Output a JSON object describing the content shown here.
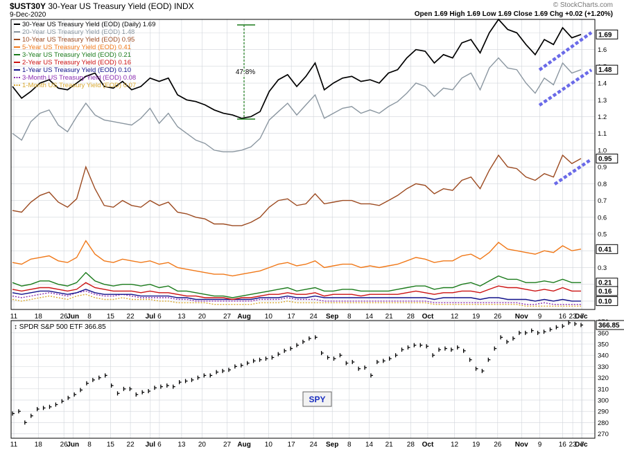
{
  "header": {
    "symbol": "$UST30Y",
    "name": "30-Year US Treasury Yield (EOD)",
    "exchange": "INDX",
    "date": "9-Dec-2020",
    "quote": "Open 1.69  High 1.69  Low 1.69  Close 1.69  Chg +0.02 (+1.20%)",
    "watermark": "© StockCharts.com",
    "annotation": "47.8%",
    "spy_box": "SPY"
  },
  "colors": {
    "bg": "#ffffff",
    "grid": "#d0d4da",
    "y30": "#000000",
    "y20": "#8a96a0",
    "y10": "#9c4a20",
    "y5": "#f07818",
    "y3": "#1a7a1a",
    "y2": "#cc1111",
    "y1": "#10108a",
    "m3": "#8a2ab0",
    "m1": "#d8a830",
    "trend": "#6a6ae8",
    "annot": "#1a7a1a"
  },
  "chart_data": [
    {
      "type": "line",
      "title": "$UST30Y 30-Year US Treasury Yield (EOD) INDX",
      "ylim": [
        0.05,
        1.78
      ],
      "y_ticks": [
        0.1,
        0.2,
        0.3,
        0.4,
        0.5,
        0.6,
        0.7,
        0.8,
        0.9,
        1.0,
        1.1,
        1.2,
        1.3,
        1.4,
        1.5,
        1.6,
        1.7
      ],
      "x_ticks": [
        "11",
        "18",
        "26",
        "Jun",
        "8",
        "15",
        "22",
        "Jul",
        "6",
        "13",
        "20",
        "27",
        "Aug",
        "10",
        "17",
        "24",
        "Sep",
        "8",
        "14",
        "21",
        "28",
        "Oct",
        "12",
        "19",
        "26",
        "Nov",
        "9",
        "16",
        "23",
        "Dec",
        "7"
      ],
      "grid": true,
      "legend_position": "top-left",
      "series": [
        {
          "name": "30-Year US Treasury Yield (EOD) (Daily) 1.69",
          "key": "y30",
          "badge": "1.69",
          "values": [
            1.38,
            1.31,
            1.35,
            1.4,
            1.42,
            1.37,
            1.36,
            1.4,
            1.44,
            1.46,
            1.38,
            1.37,
            1.41,
            1.36,
            1.38,
            1.43,
            1.41,
            1.43,
            1.33,
            1.3,
            1.29,
            1.27,
            1.24,
            1.22,
            1.21,
            1.19,
            1.2,
            1.23,
            1.35,
            1.42,
            1.45,
            1.38,
            1.44,
            1.52,
            1.36,
            1.4,
            1.43,
            1.44,
            1.41,
            1.42,
            1.4,
            1.46,
            1.48,
            1.55,
            1.6,
            1.59,
            1.52,
            1.57,
            1.55,
            1.64,
            1.66,
            1.58,
            1.7,
            1.78,
            1.72,
            1.7,
            1.63,
            1.57,
            1.66,
            1.63,
            1.73,
            1.67,
            1.69
          ]
        },
        {
          "name": "20-Year US Treasury Yield (EOD) 1.48",
          "key": "y20",
          "badge": "1.48",
          "values": [
            1.1,
            1.06,
            1.17,
            1.22,
            1.24,
            1.15,
            1.11,
            1.2,
            1.28,
            1.21,
            1.18,
            1.17,
            1.16,
            1.15,
            1.19,
            1.25,
            1.16,
            1.22,
            1.14,
            1.1,
            1.06,
            1.04,
            1.0,
            0.99,
            0.99,
            1.0,
            1.02,
            1.07,
            1.18,
            1.23,
            1.28,
            1.21,
            1.27,
            1.33,
            1.19,
            1.22,
            1.25,
            1.26,
            1.22,
            1.24,
            1.22,
            1.26,
            1.29,
            1.34,
            1.4,
            1.38,
            1.32,
            1.37,
            1.36,
            1.43,
            1.46,
            1.36,
            1.49,
            1.55,
            1.49,
            1.48,
            1.4,
            1.34,
            1.43,
            1.39,
            1.52,
            1.46,
            1.48
          ]
        },
        {
          "name": "10-Year US Treasury Yield (EOD) 0.95",
          "key": "y10",
          "badge": "0.95",
          "values": [
            0.64,
            0.63,
            0.69,
            0.73,
            0.75,
            0.69,
            0.66,
            0.71,
            0.9,
            0.77,
            0.67,
            0.66,
            0.7,
            0.67,
            0.66,
            0.7,
            0.67,
            0.69,
            0.63,
            0.62,
            0.6,
            0.59,
            0.56,
            0.56,
            0.55,
            0.55,
            0.57,
            0.6,
            0.66,
            0.7,
            0.71,
            0.67,
            0.68,
            0.74,
            0.68,
            0.69,
            0.7,
            0.7,
            0.68,
            0.68,
            0.67,
            0.7,
            0.73,
            0.77,
            0.8,
            0.79,
            0.74,
            0.77,
            0.76,
            0.82,
            0.84,
            0.77,
            0.88,
            0.97,
            0.9,
            0.89,
            0.84,
            0.82,
            0.86,
            0.84,
            0.97,
            0.92,
            0.95
          ]
        },
        {
          "name": "5-Year US Treasury Yield (EOD) 0.41",
          "key": "y5",
          "badge": "0.41",
          "values": [
            0.33,
            0.32,
            0.35,
            0.36,
            0.37,
            0.34,
            0.33,
            0.36,
            0.46,
            0.38,
            0.34,
            0.33,
            0.35,
            0.34,
            0.33,
            0.34,
            0.32,
            0.33,
            0.3,
            0.29,
            0.28,
            0.27,
            0.26,
            0.26,
            0.25,
            0.26,
            0.27,
            0.28,
            0.3,
            0.32,
            0.33,
            0.31,
            0.32,
            0.34,
            0.3,
            0.31,
            0.32,
            0.32,
            0.3,
            0.31,
            0.3,
            0.31,
            0.32,
            0.34,
            0.36,
            0.35,
            0.33,
            0.34,
            0.34,
            0.37,
            0.38,
            0.35,
            0.39,
            0.45,
            0.41,
            0.4,
            0.39,
            0.38,
            0.4,
            0.39,
            0.43,
            0.4,
            0.41
          ]
        },
        {
          "name": "3-Year US Treasury Yield (EOD) 0.21",
          "key": "y3",
          "badge": "0.21",
          "values": [
            0.21,
            0.19,
            0.2,
            0.22,
            0.22,
            0.2,
            0.19,
            0.21,
            0.27,
            0.22,
            0.2,
            0.19,
            0.2,
            0.2,
            0.19,
            0.2,
            0.18,
            0.19,
            0.16,
            0.16,
            0.15,
            0.14,
            0.13,
            0.13,
            0.12,
            0.13,
            0.14,
            0.15,
            0.16,
            0.17,
            0.18,
            0.16,
            0.17,
            0.18,
            0.16,
            0.16,
            0.17,
            0.17,
            0.16,
            0.16,
            0.16,
            0.16,
            0.17,
            0.18,
            0.19,
            0.19,
            0.17,
            0.18,
            0.18,
            0.2,
            0.21,
            0.19,
            0.22,
            0.25,
            0.23,
            0.23,
            0.21,
            0.21,
            0.22,
            0.21,
            0.23,
            0.21,
            0.21
          ]
        },
        {
          "name": "2-Year US Treasury Yield (EOD) 0.16",
          "key": "y2",
          "badge": "0.16",
          "values": [
            0.17,
            0.16,
            0.17,
            0.18,
            0.18,
            0.17,
            0.16,
            0.17,
            0.21,
            0.18,
            0.17,
            0.16,
            0.16,
            0.16,
            0.15,
            0.16,
            0.15,
            0.15,
            0.14,
            0.13,
            0.13,
            0.12,
            0.12,
            0.12,
            0.11,
            0.12,
            0.12,
            0.13,
            0.14,
            0.14,
            0.15,
            0.14,
            0.14,
            0.15,
            0.13,
            0.14,
            0.14,
            0.14,
            0.13,
            0.14,
            0.14,
            0.14,
            0.14,
            0.15,
            0.16,
            0.15,
            0.14,
            0.15,
            0.15,
            0.16,
            0.16,
            0.15,
            0.17,
            0.19,
            0.18,
            0.18,
            0.17,
            0.16,
            0.17,
            0.16,
            0.18,
            0.16,
            0.16
          ]
        },
        {
          "name": "1-Year US Treasury Yield (EOD) 0.10",
          "key": "y1",
          "badge": "0.10",
          "values": [
            0.15,
            0.14,
            0.15,
            0.16,
            0.16,
            0.15,
            0.14,
            0.15,
            0.17,
            0.15,
            0.14,
            0.14,
            0.14,
            0.14,
            0.13,
            0.13,
            0.13,
            0.13,
            0.12,
            0.12,
            0.11,
            0.11,
            0.11,
            0.11,
            0.11,
            0.11,
            0.11,
            0.12,
            0.12,
            0.12,
            0.13,
            0.12,
            0.12,
            0.13,
            0.12,
            0.12,
            0.12,
            0.12,
            0.12,
            0.12,
            0.12,
            0.12,
            0.12,
            0.12,
            0.12,
            0.12,
            0.11,
            0.12,
            0.12,
            0.12,
            0.12,
            0.11,
            0.12,
            0.12,
            0.11,
            0.11,
            0.11,
            0.1,
            0.11,
            0.1,
            0.11,
            0.1,
            0.1
          ]
        },
        {
          "name": "3-Month US Treasury Yield (EOD) 0.08",
          "key": "m3",
          "badge": "",
          "values": [
            0.13,
            0.12,
            0.13,
            0.14,
            0.15,
            0.14,
            0.13,
            0.15,
            0.16,
            0.14,
            0.13,
            0.13,
            0.14,
            0.13,
            0.12,
            0.12,
            0.12,
            0.12,
            0.11,
            0.11,
            0.1,
            0.1,
            0.1,
            0.1,
            0.1,
            0.1,
            0.1,
            0.11,
            0.11,
            0.11,
            0.12,
            0.11,
            0.11,
            0.11,
            0.1,
            0.1,
            0.1,
            0.1,
            0.1,
            0.1,
            0.1,
            0.1,
            0.1,
            0.1,
            0.1,
            0.1,
            0.09,
            0.09,
            0.09,
            0.09,
            0.09,
            0.09,
            0.09,
            0.09,
            0.09,
            0.09,
            0.08,
            0.08,
            0.09,
            0.08,
            0.08,
            0.08,
            0.08
          ]
        },
        {
          "name": "1-Month US Treasury Yield (EOD) 0.07",
          "key": "m1",
          "badge": "",
          "values": [
            0.11,
            0.1,
            0.11,
            0.12,
            0.13,
            0.12,
            0.11,
            0.13,
            0.14,
            0.12,
            0.11,
            0.11,
            0.12,
            0.11,
            0.11,
            0.11,
            0.1,
            0.1,
            0.09,
            0.09,
            0.09,
            0.09,
            0.08,
            0.08,
            0.08,
            0.08,
            0.08,
            0.09,
            0.09,
            0.09,
            0.1,
            0.09,
            0.09,
            0.09,
            0.09,
            0.09,
            0.09,
            0.09,
            0.09,
            0.09,
            0.09,
            0.09,
            0.09,
            0.09,
            0.09,
            0.09,
            0.08,
            0.08,
            0.08,
            0.08,
            0.08,
            0.08,
            0.08,
            0.08,
            0.08,
            0.08,
            0.07,
            0.07,
            0.07,
            0.07,
            0.07,
            0.07,
            0.07
          ]
        }
      ]
    },
    {
      "type": "line",
      "title": "SPDR S&P 500 ETF 366.85",
      "ylim": [
        266,
        371
      ],
      "y_ticks": [
        270,
        280,
        290,
        300,
        310,
        320,
        330,
        340,
        350,
        360,
        370
      ],
      "x_ticks": [
        "11",
        "18",
        "26",
        "Jun",
        "8",
        "15",
        "22",
        "Jul",
        "6",
        "13",
        "20",
        "27",
        "Aug",
        "10",
        "17",
        "24",
        "Sep",
        "8",
        "14",
        "21",
        "28",
        "Oct",
        "12",
        "19",
        "26",
        "Nov",
        "9",
        "16",
        "23",
        "Dec",
        "7"
      ],
      "grid": true,
      "series": [
        {
          "name": "SPDR S&P 500 ETF 366.85",
          "key": "spy",
          "badge": "366.85",
          "values": [
            288,
            290,
            280,
            286,
            292,
            293,
            294,
            296,
            299,
            302,
            305,
            309,
            315,
            318,
            320,
            322,
            313,
            306,
            310,
            310,
            305,
            307,
            308,
            311,
            312,
            313,
            312,
            316,
            317,
            318,
            320,
            322,
            322,
            325,
            326,
            327,
            330,
            331,
            333,
            335,
            336,
            337,
            338,
            341,
            344,
            346,
            349,
            352,
            355,
            356,
            342,
            338,
            337,
            340,
            333,
            334,
            328,
            329,
            322,
            334,
            335,
            337,
            340,
            345,
            347,
            349,
            349,
            348,
            340,
            345,
            346,
            345,
            347,
            344,
            336,
            328,
            326,
            336,
            346,
            356,
            352,
            355,
            360,
            360,
            362,
            360,
            361,
            363,
            365,
            366,
            369,
            368,
            367
          ]
        }
      ]
    }
  ]
}
